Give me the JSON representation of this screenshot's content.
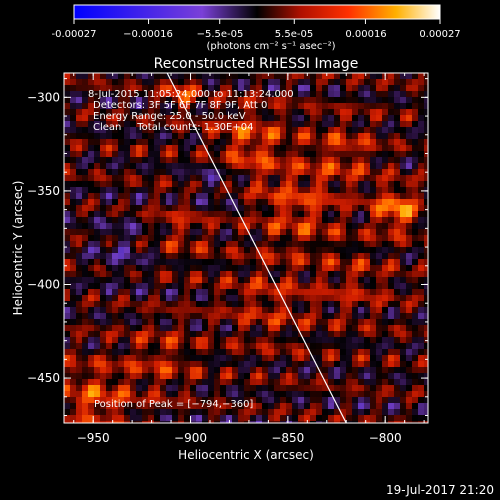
{
  "chart_data": {
    "type": "heatmap",
    "title": "Reconstructed RHESSI Image",
    "xlabel": "Heliocentric X (arcsec)",
    "ylabel": "Heliocentric Y (arcsec)",
    "xlim": [
      -965,
      -778
    ],
    "ylim": [
      -474,
      -287
    ],
    "x_ticks": [
      -950,
      -900,
      -850,
      -800
    ],
    "y_ticks": [
      -300,
      -350,
      -400,
      -450
    ],
    "x_tick_labels": [
      "−950",
      "−900",
      "−850",
      "−800"
    ],
    "y_tick_labels": [
      "−300",
      "−350",
      "−400",
      "−450"
    ],
    "colorbar": {
      "range": [
        -0.00027,
        0.00027
      ],
      "tick_values": [
        -0.00027,
        -0.00016,
        -5.5e-05,
        5.5e-05,
        0.00016,
        0.00027
      ],
      "tick_labels": [
        "-0.00027",
        "−0.00016",
        "−5.5e-05",
        "5.5e-05",
        "0.00016",
        "0.00027"
      ],
      "unit_text": "(photons cm⁻² s⁻¹ asec⁻²)"
    },
    "annotations": [
      "8-Jul-2015 11:05:24.000 to 11:13:24.000",
      "Detectors: 3F 5F 6F 7F 8F 9F, Att 0",
      "Energy Range: 25.0 - 50.0 keV",
      "Clean     Total counts: 1.30E+04"
    ],
    "peak_label": "Position of Peak = [−794,−360]",
    "peak": [
      -794,
      -360
    ],
    "limb_line": [
      [
        -912,
        -287
      ],
      [
        -820,
        -474
      ]
    ],
    "timestamp": "19-Jul-2017 21:20"
  }
}
